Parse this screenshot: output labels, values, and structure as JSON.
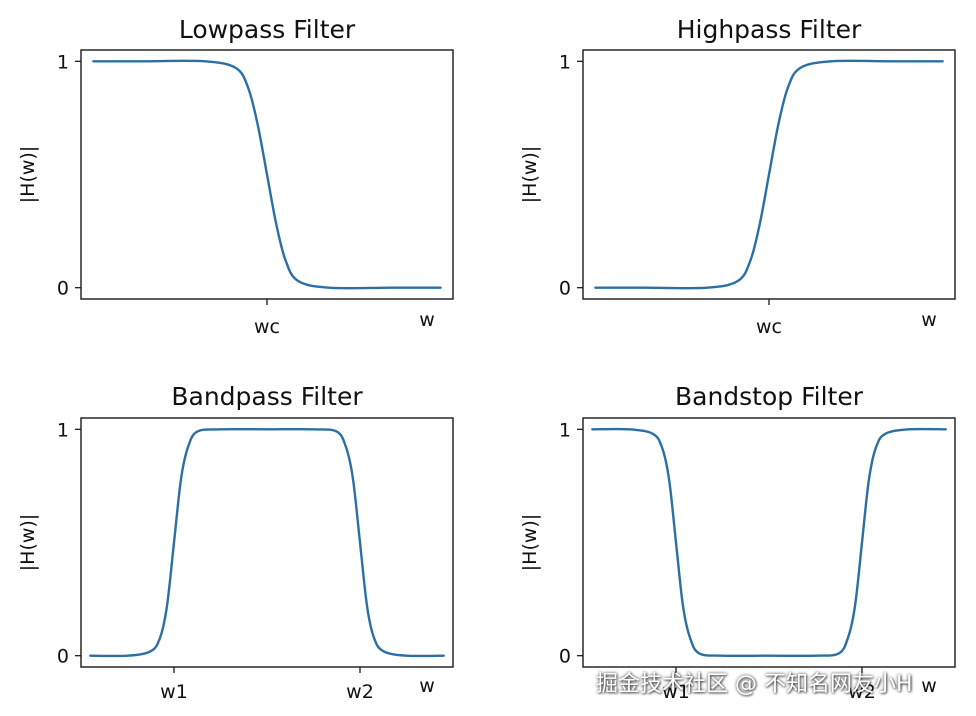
{
  "colors": {
    "line": "#2b6fa4",
    "axis": "#1a1a1a"
  },
  "chart_data": [
    {
      "type": "line",
      "id": "lowpass",
      "title": "Lowpass Filter",
      "ylabel": "|H(w)|",
      "xlabel": "w",
      "yticks": [
        {
          "value": 0,
          "label": "0"
        },
        {
          "value": 1,
          "label": "1"
        }
      ],
      "xticks": [
        {
          "value": 0,
          "label": "wc"
        }
      ],
      "xlim": [
        -3,
        3
      ],
      "ylim": [
        -0.05,
        1.05
      ],
      "x": [
        -2.8,
        -2.0,
        -1.0,
        -0.5,
        -0.3,
        -0.15,
        0,
        0.15,
        0.3,
        0.5,
        1.0,
        2.0,
        2.8
      ],
      "y": [
        1.0,
        1.0,
        1.0,
        0.97,
        0.88,
        0.72,
        0.5,
        0.28,
        0.12,
        0.03,
        0.0,
        0.0,
        0.0
      ]
    },
    {
      "type": "line",
      "id": "highpass",
      "title": "Highpass Filter",
      "ylabel": "|H(w)|",
      "xlabel": "w",
      "yticks": [
        {
          "value": 0,
          "label": "0"
        },
        {
          "value": 1,
          "label": "1"
        }
      ],
      "xticks": [
        {
          "value": 0,
          "label": "wc"
        }
      ],
      "xlim": [
        -3,
        3
      ],
      "ylim": [
        -0.05,
        1.05
      ],
      "x": [
        -2.8,
        -2.0,
        -1.0,
        -0.5,
        -0.3,
        -0.15,
        0,
        0.15,
        0.3,
        0.5,
        1.0,
        2.0,
        2.8
      ],
      "y": [
        0.0,
        0.0,
        0.0,
        0.03,
        0.12,
        0.28,
        0.5,
        0.72,
        0.88,
        0.97,
        1.0,
        1.0,
        1.0
      ]
    },
    {
      "type": "line",
      "id": "bandpass",
      "title": "Bandpass Filter",
      "ylabel": "|H(w)|",
      "xlabel": "w",
      "yticks": [
        {
          "value": 0,
          "label": "0"
        },
        {
          "value": 1,
          "label": "1"
        }
      ],
      "xticks": [
        {
          "value": -2,
          "label": "w1"
        },
        {
          "value": 2,
          "label": "w2"
        }
      ],
      "xlim": [
        -4,
        4
      ],
      "ylim": [
        -0.05,
        1.05
      ],
      "x": [
        -3.8,
        -3.0,
        -2.5,
        -2.3,
        -2.15,
        -2.0,
        -1.85,
        -1.7,
        -1.5,
        -1.0,
        0,
        1.0,
        1.5,
        1.7,
        1.85,
        2.0,
        2.15,
        2.3,
        2.5,
        3.0,
        3.8
      ],
      "y": [
        0.0,
        0.0,
        0.02,
        0.08,
        0.22,
        0.5,
        0.78,
        0.92,
        0.99,
        1.0,
        1.0,
        1.0,
        0.99,
        0.92,
        0.78,
        0.5,
        0.22,
        0.08,
        0.02,
        0.0,
        0.0
      ]
    },
    {
      "type": "line",
      "id": "bandstop",
      "title": "Bandstop Filter",
      "ylabel": "|H(w)|",
      "xlabel": "w",
      "yticks": [
        {
          "value": 0,
          "label": "0"
        },
        {
          "value": 1,
          "label": "1"
        }
      ],
      "xticks": [
        {
          "value": -2,
          "label": "w1"
        },
        {
          "value": 2,
          "label": "w2"
        }
      ],
      "xlim": [
        -4,
        4
      ],
      "ylim": [
        -0.05,
        1.05
      ],
      "x": [
        -3.8,
        -3.0,
        -2.5,
        -2.3,
        -2.15,
        -2.0,
        -1.85,
        -1.7,
        -1.5,
        -1.0,
        0,
        1.0,
        1.5,
        1.7,
        1.85,
        2.0,
        2.15,
        2.3,
        2.5,
        3.0,
        3.8
      ],
      "y": [
        1.0,
        1.0,
        0.98,
        0.92,
        0.78,
        0.5,
        0.22,
        0.08,
        0.01,
        0.0,
        0.0,
        0.0,
        0.01,
        0.08,
        0.22,
        0.5,
        0.78,
        0.92,
        0.98,
        1.0,
        1.0
      ]
    }
  ],
  "watermark": "掘金技术社区 @ 不知名网友小H"
}
